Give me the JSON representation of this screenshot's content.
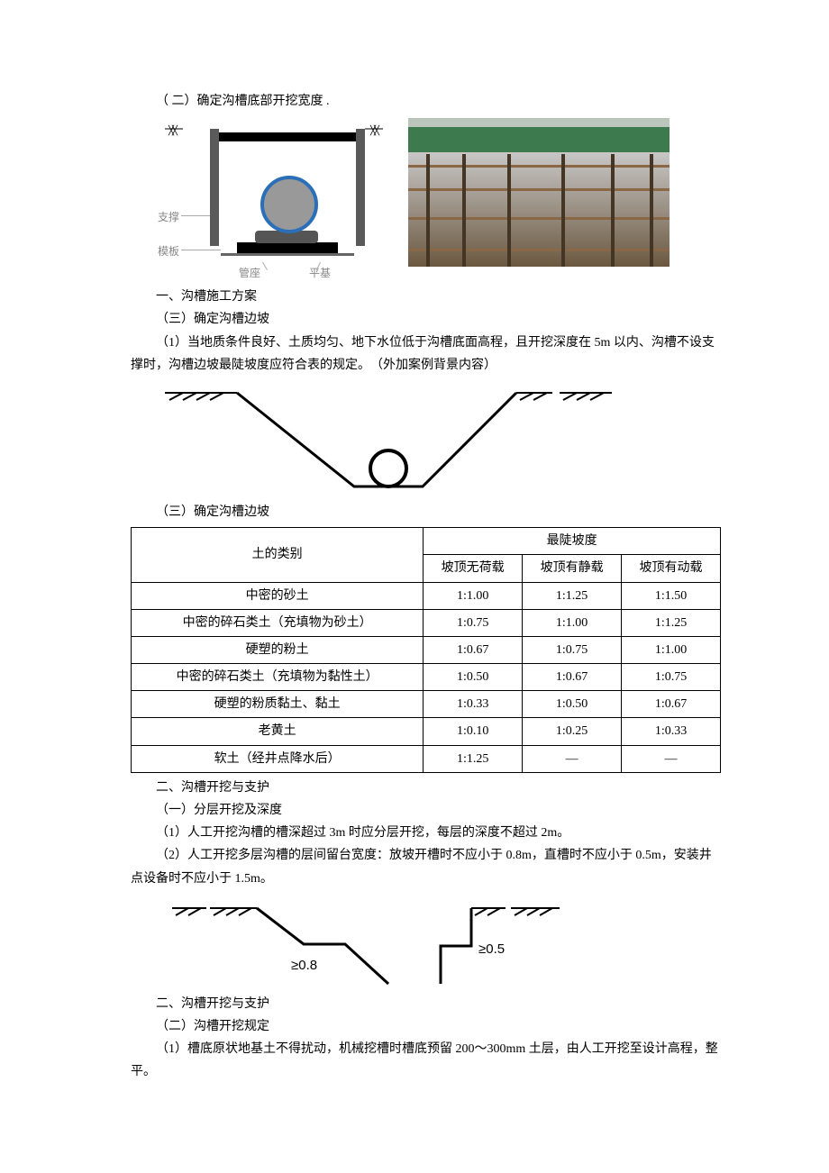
{
  "sectionA": {
    "title": "（ 二）确定沟槽底部开挖宽度 .",
    "diag1_labels": {
      "support": "支撑",
      "template": "模板",
      "pipe_seat": "管座",
      "flat_base": "平基"
    }
  },
  "sectionB": {
    "line1": "一、沟槽施工方案",
    "line2": "（三）确定沟槽边坡",
    "line3": "（1）当地质条件良好、土质均匀、地下水位低于沟槽底面高程，且开挖深度在 5m 以内、沟槽不设支撑时，沟槽边坡最陡坡度应符合表的规定。　（外加案例背景内容）",
    "line4": "（三）确定沟槽边坡"
  },
  "table": {
    "header_col1": "土的类别",
    "header_col2": "最陡坡度",
    "sub1": "坡顶无荷载",
    "sub2": "坡顶有静载",
    "sub3": "坡顶有动载",
    "rows": [
      {
        "name": "中密的砂土",
        "v1": "1:1.00",
        "v2": "1:1.25",
        "v3": "1:1.50"
      },
      {
        "name": "中密的碎石类土（充填物为砂土）",
        "v1": "1:0.75",
        "v2": "1:1.00",
        "v3": "1:1.25"
      },
      {
        "name": "硬塑的粉土",
        "v1": "1:0.67",
        "v2": "1:0.75",
        "v3": "1:1.00"
      },
      {
        "name": "中密的碎石类土（充填物为黏性土）",
        "v1": "1:0.50",
        "v2": "1:0.67",
        "v3": "1:0.75"
      },
      {
        "name": "硬塑的粉质黏土、黏土",
        "v1": "1:0.33",
        "v2": "1:0.50",
        "v3": "1:0.67"
      },
      {
        "name": "老黄土",
        "v1": "1:0.10",
        "v2": "1:0.25",
        "v3": "1:0.33"
      },
      {
        "name": "软土（经井点降水后）",
        "v1": "1:1.25",
        "v2": "—",
        "v3": "—"
      }
    ]
  },
  "sectionC": {
    "line1": "二、沟槽开挖与支护",
    "line2": "（一）分层开挖及深度",
    "line3": "（1）人工开挖沟槽的槽深超过 3m 时应分层开挖，每层的深度不超过 2m。",
    "line4": "（2）人工开挖多层沟槽的层间留台宽度：放坡开槽时不应小于 0.8m，直槽时不应小于 0.5m，安装井点设备时不应小于 1.5m。",
    "diag3_label1": "≥0.8",
    "diag3_label2": "≥0.5"
  },
  "sectionD": {
    "line1": "二、沟槽开挖与支护",
    "line2": "（二）沟槽开挖规定",
    "line3": "（1）槽底原状地基土不得扰动，机械挖槽时槽底预留 200～300mm 土层，由人工开挖至设计高程，整平。"
  },
  "colors": {
    "text": "#000000",
    "label_gray": "#888888",
    "pipe_blue": "#2a6fb8",
    "pipe_fill": "#999999",
    "fence_green": "#3d7a4d"
  }
}
